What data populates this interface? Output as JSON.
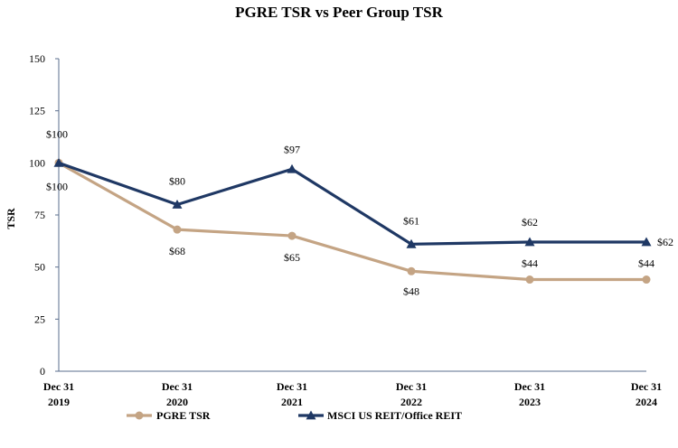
{
  "chart_data": {
    "type": "line",
    "title": "PGRE TSR vs Peer Group TSR",
    "xlabel": "",
    "ylabel": "TSR",
    "ylim": [
      0,
      150
    ],
    "yticks": [
      0,
      25,
      50,
      75,
      100,
      125,
      150
    ],
    "categories": [
      [
        "Dec 31",
        "2019"
      ],
      [
        "Dec 31",
        "2020"
      ],
      [
        "Dec 31",
        "2021"
      ],
      [
        "Dec 31",
        "2022"
      ],
      [
        "Dec 31",
        "2023"
      ],
      [
        "Dec 31",
        "2024"
      ]
    ],
    "series": [
      {
        "name": "PGRE TSR",
        "color": "#c4a484",
        "marker": "circle",
        "values": [
          100,
          68,
          65,
          48,
          44,
          44
        ],
        "labels": [
          "$100",
          "$68",
          "$65",
          "$48",
          "$44",
          "$44"
        ]
      },
      {
        "name": "MSCI US REIT/Office REIT",
        "color": "#1f3864",
        "marker": "triangle",
        "values": [
          100,
          80,
          97,
          61,
          62,
          62
        ],
        "labels": [
          "$100",
          "$80",
          "$97",
          "$61",
          "$62",
          "$62"
        ]
      }
    ],
    "legend": "bottom",
    "grid": false
  }
}
